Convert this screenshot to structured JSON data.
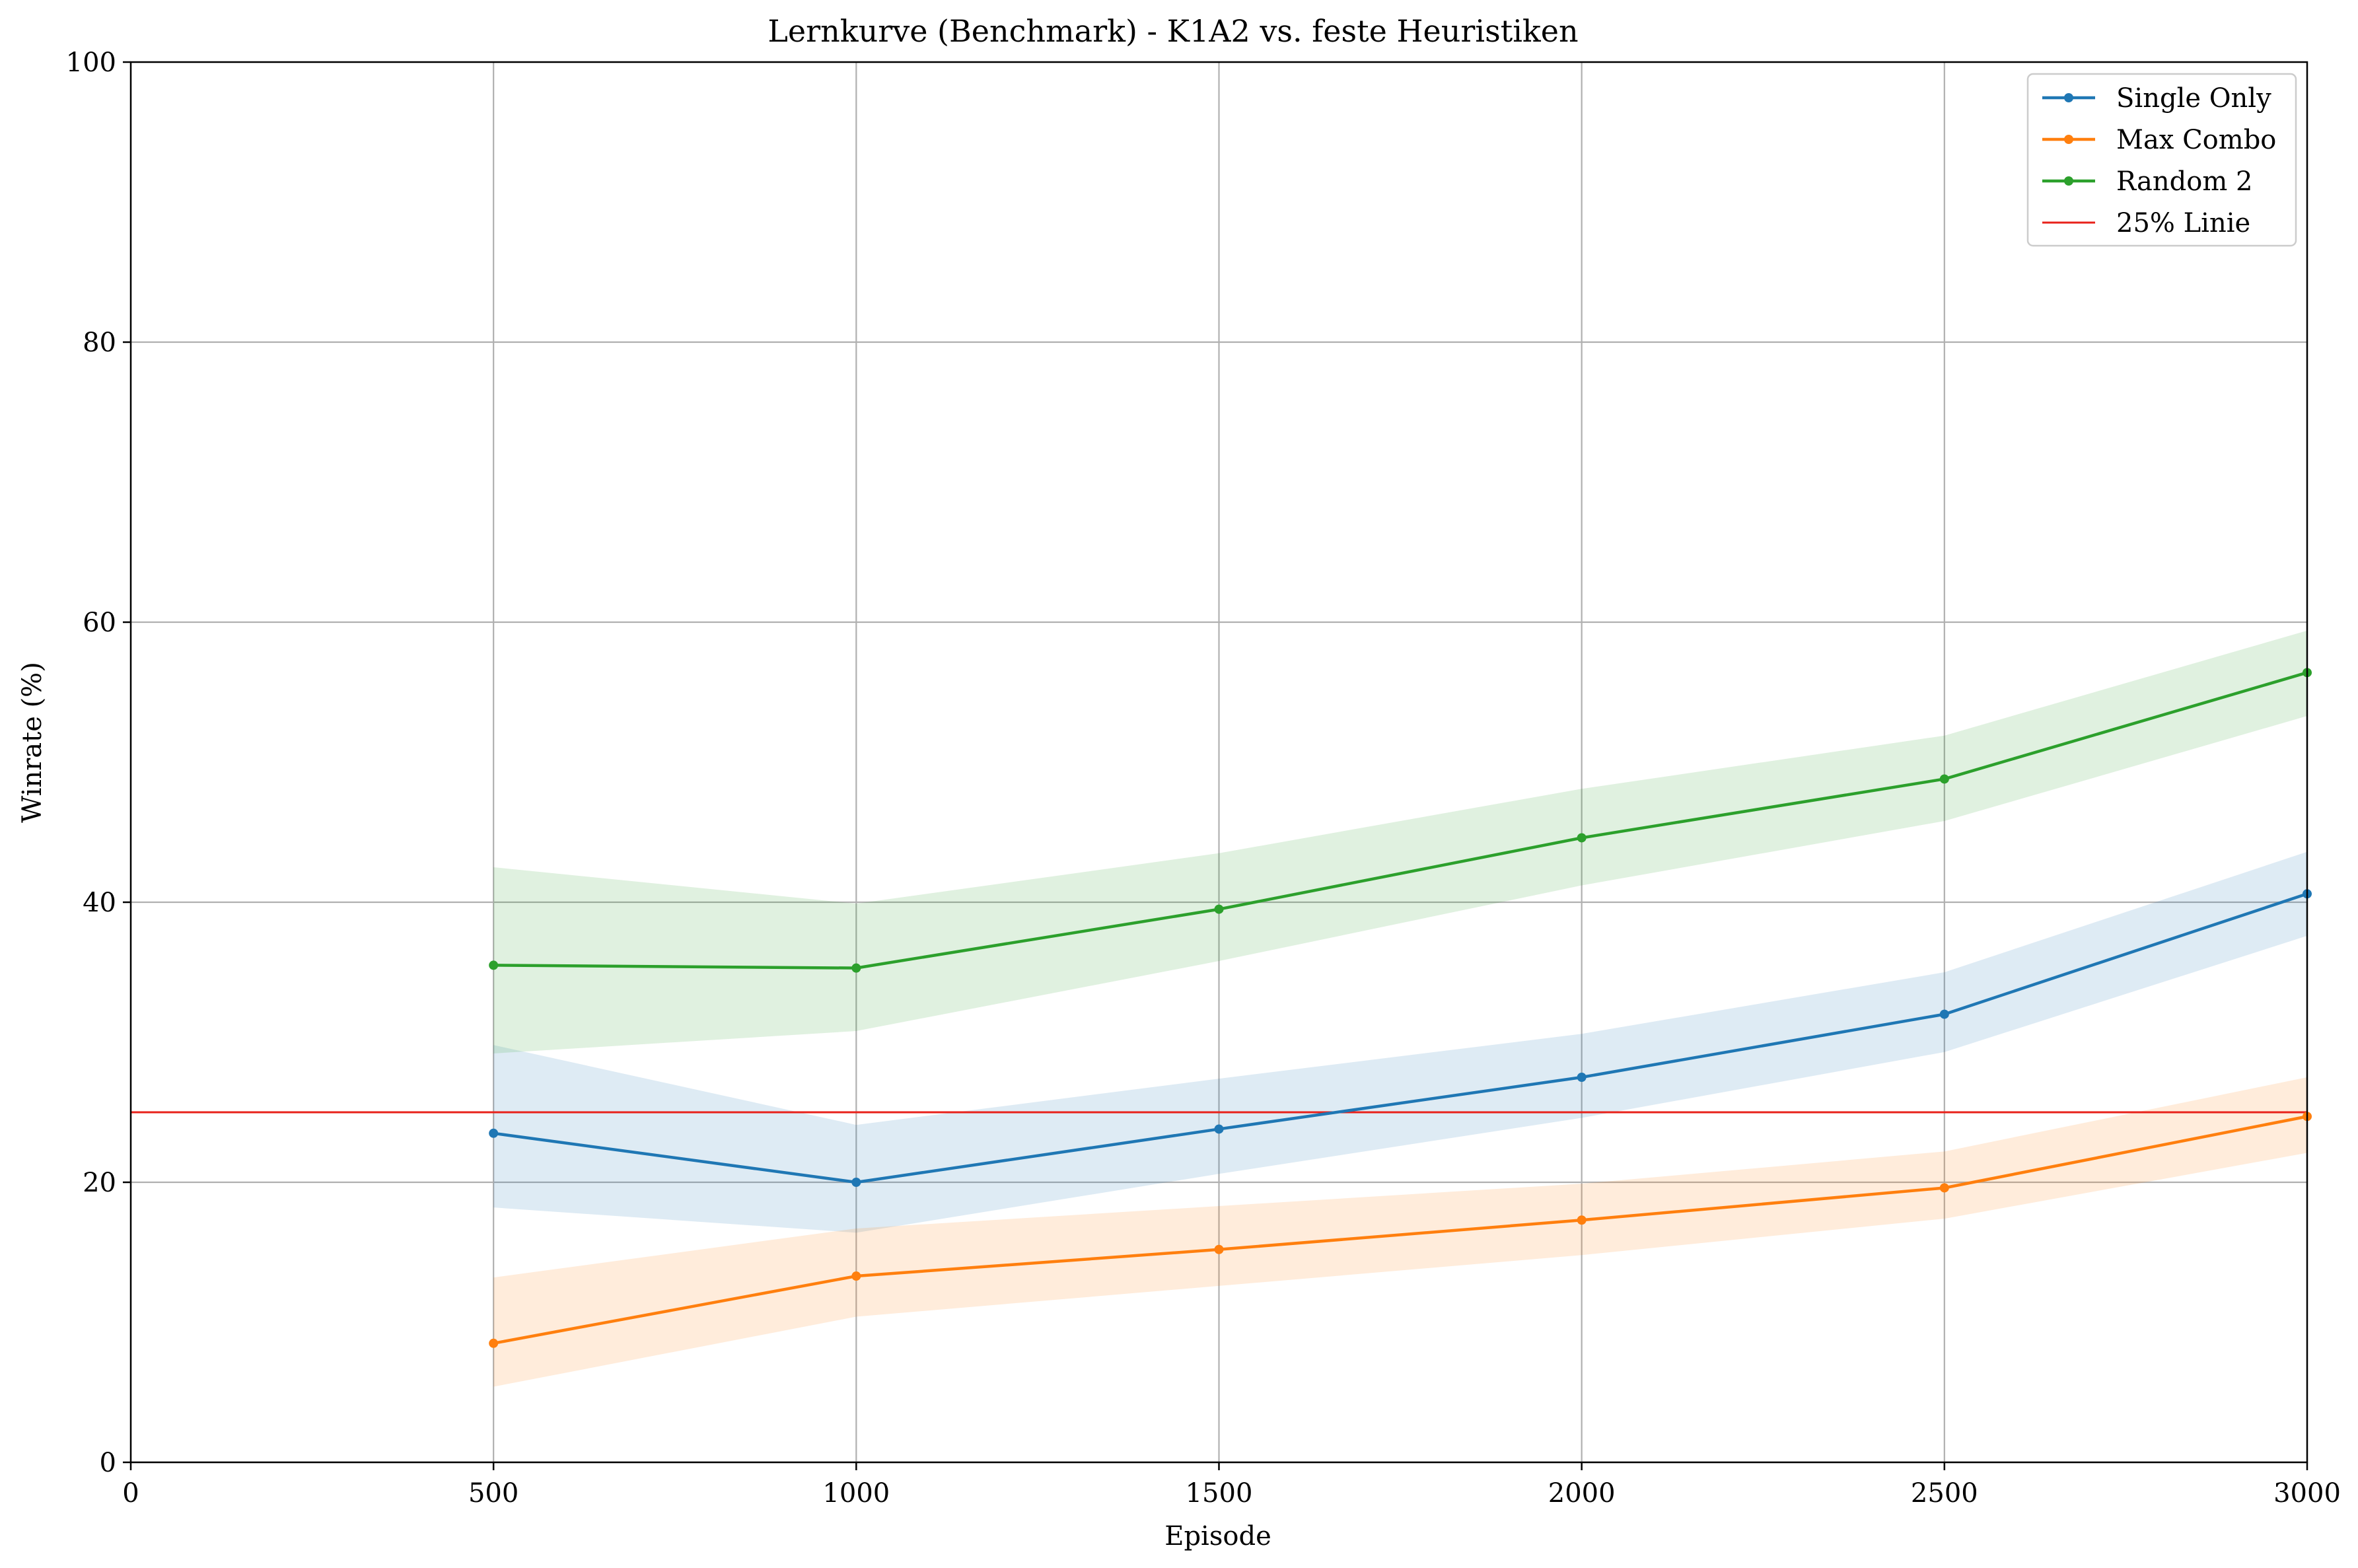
{
  "chart_data": {
    "type": "line",
    "title": "Lernkurve (Benchmark) - K1A2 vs. feste Heuristiken",
    "xlabel": "Episode",
    "ylabel": "Winrate (%)",
    "xlim": [
      0,
      3000
    ],
    "ylim": [
      0,
      100
    ],
    "xticks": [
      0,
      500,
      1000,
      1500,
      2000,
      2500,
      3000
    ],
    "yticks": [
      0,
      20,
      40,
      60,
      80,
      100
    ],
    "grid": true,
    "legend_position": "top-right",
    "x": [
      500,
      1000,
      1500,
      2000,
      2500,
      3000
    ],
    "series": [
      {
        "name": "Single Only",
        "color": "#1f77b4",
        "values": [
          23.5,
          20.0,
          23.8,
          27.5,
          32.0,
          40.6
        ],
        "band_lower": [
          18.2,
          16.4,
          20.6,
          24.6,
          29.3,
          37.6
        ],
        "band_upper": [
          29.8,
          24.1,
          27.4,
          30.6,
          35.0,
          43.6
        ]
      },
      {
        "name": "Max Combo",
        "color": "#ff7f0e",
        "values": [
          8.5,
          13.3,
          15.2,
          17.3,
          19.6,
          24.7
        ],
        "band_lower": [
          5.4,
          10.4,
          12.6,
          14.8,
          17.4,
          22.1
        ],
        "band_upper": [
          13.2,
          16.7,
          18.3,
          19.9,
          22.2,
          27.5
        ]
      },
      {
        "name": "Random 2",
        "color": "#2ca02c",
        "values": [
          35.5,
          35.3,
          39.5,
          44.6,
          48.8,
          56.4
        ],
        "band_lower": [
          29.2,
          30.8,
          35.8,
          41.2,
          45.8,
          53.3
        ],
        "band_upper": [
          42.5,
          39.9,
          43.5,
          48.1,
          51.9,
          59.4
        ]
      }
    ],
    "reference_line": {
      "name": "25% Linie",
      "color": "#e8211a",
      "y": 25
    }
  }
}
